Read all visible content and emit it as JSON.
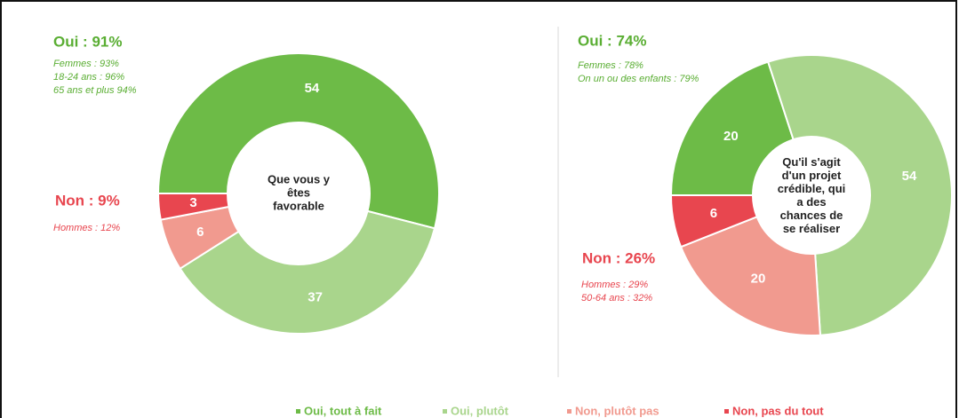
{
  "legend": {
    "categories": [
      "Oui, tout à fait",
      "Oui, plutôt",
      "Non, plutôt pas",
      "Non, pas du tout"
    ],
    "colors": [
      "#6dbb47",
      "#a9d58c",
      "#f19a8f",
      "#e8464f"
    ]
  },
  "chart_data": [
    {
      "type": "pie",
      "center_label": [
        "Que vous y",
        "êtes",
        "favorable"
      ],
      "values": [
        54,
        37,
        6,
        3
      ],
      "yes_title": "Oui : 91%",
      "yes_notes": [
        "Femmes : 93%",
        "18-24 ans : 96%",
        "65 ans et plus 94%"
      ],
      "no_title": "Non : 9%",
      "no_notes": [
        "Hommes : 12%"
      ]
    },
    {
      "type": "pie",
      "center_label": [
        "Qu'il s'agit",
        "d'un projet",
        "crédible, qui",
        "a des",
        "chances de",
        "se réaliser"
      ],
      "values": [
        20,
        54,
        20,
        6
      ],
      "yes_title": "Oui : 74%",
      "yes_notes": [
        "Femmes : 78%",
        "On un ou des enfants : 79%"
      ],
      "no_title": "Non : 26%",
      "no_notes": [
        "Hommes : 29%",
        "50-64 ans : 32%"
      ]
    }
  ]
}
